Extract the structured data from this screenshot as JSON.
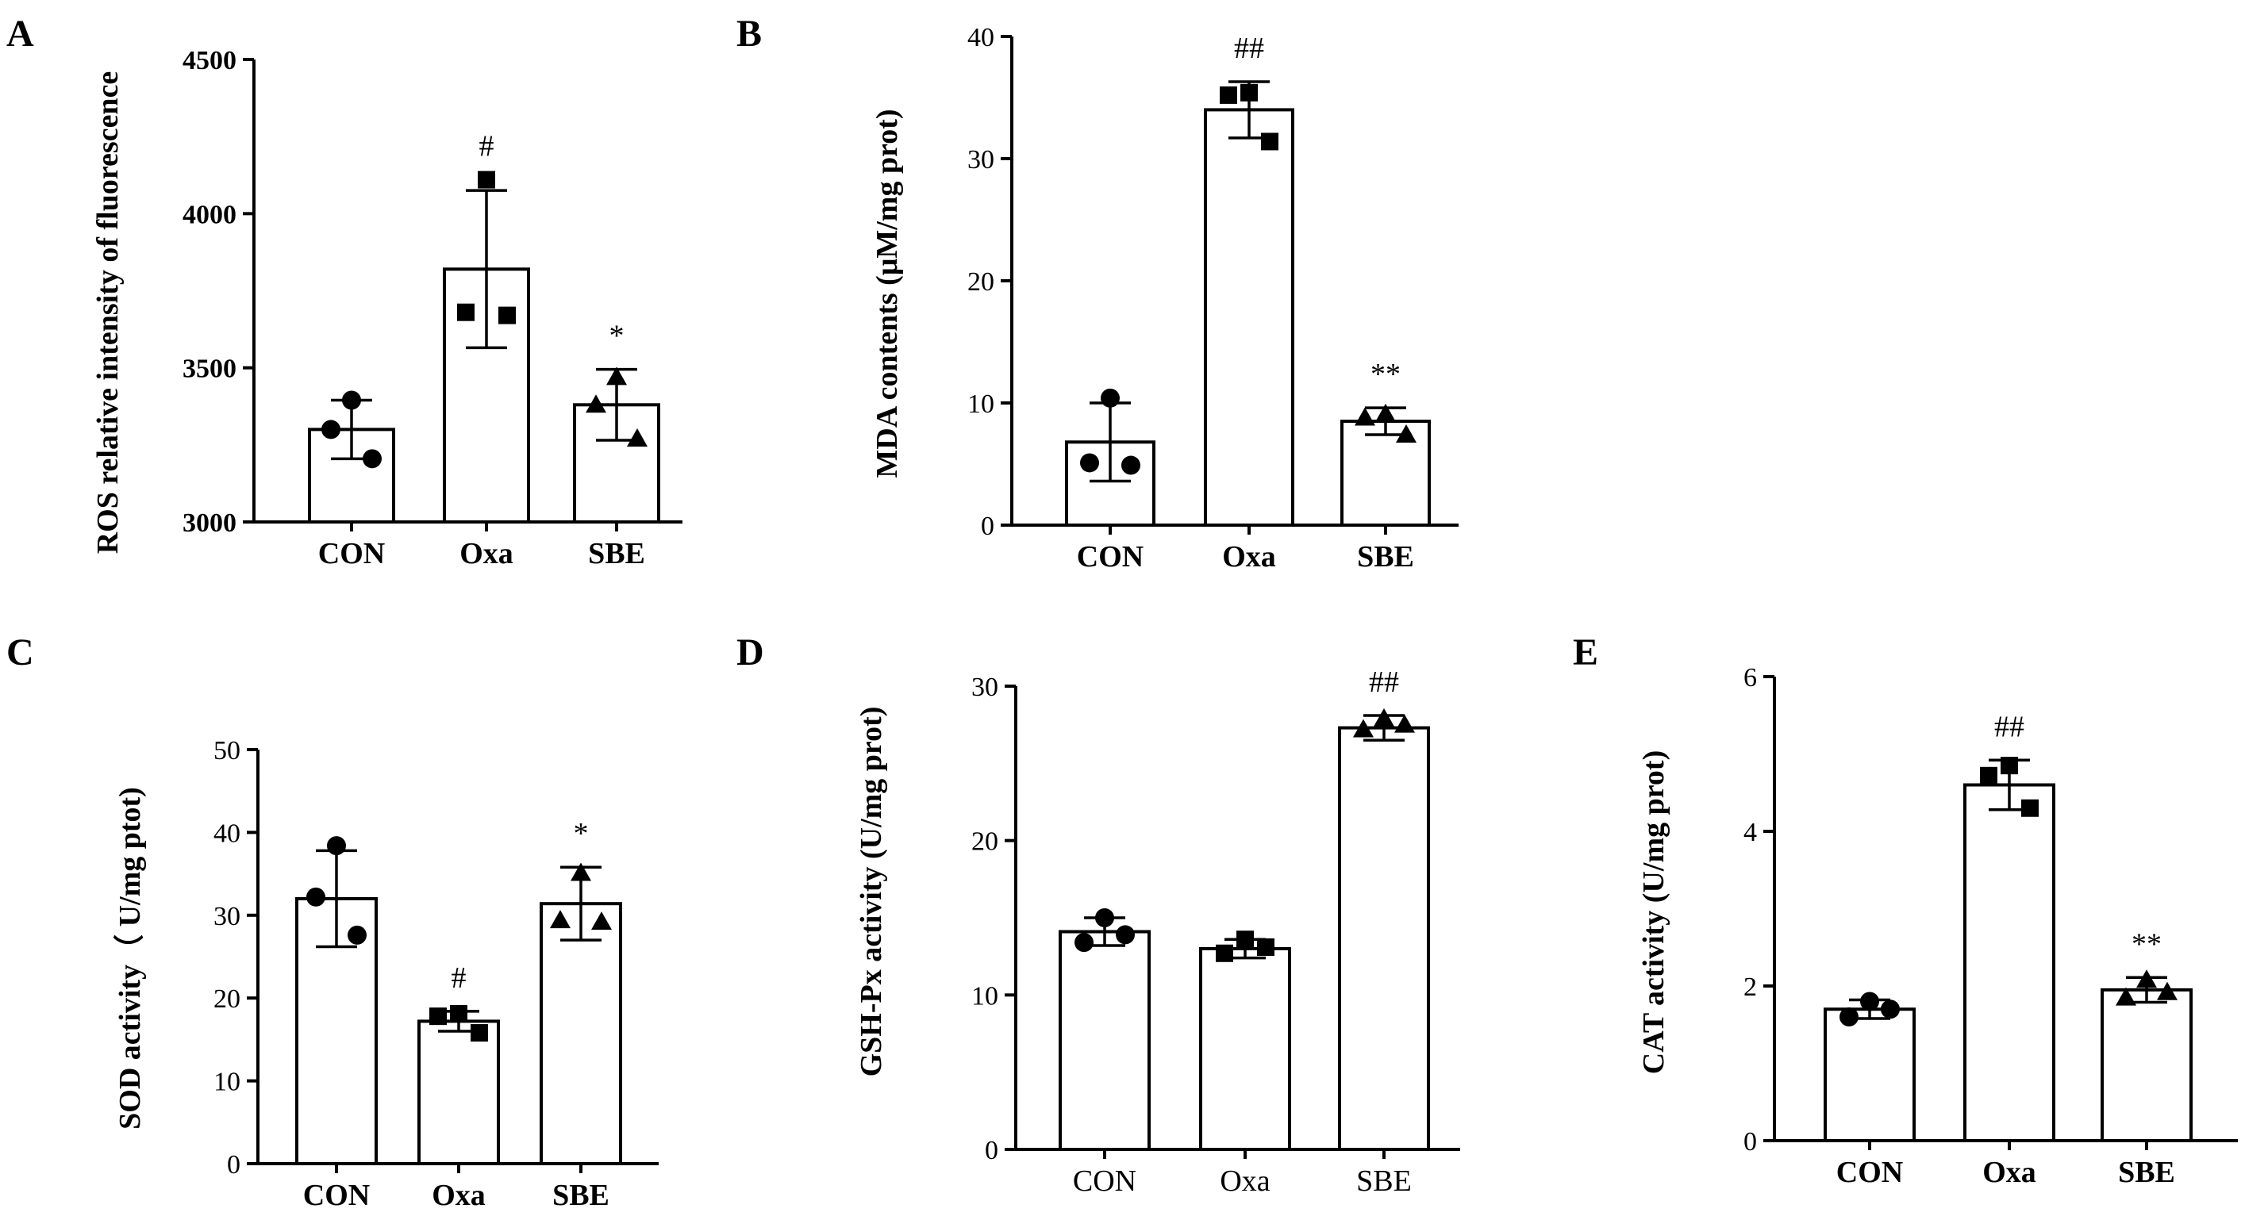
{
  "chart_data": [
    {
      "id": "A",
      "type": "bar",
      "letter": "A",
      "ylabel": "ROS relative intensity of fluorescence",
      "ylim": [
        3000,
        4500
      ],
      "yticks": [
        3000,
        3500,
        4000,
        4500
      ],
      "categories": [
        "CON",
        "Oxa",
        "SBE"
      ],
      "values": [
        3300,
        3820,
        3380
      ],
      "errors": [
        95,
        255,
        115
      ],
      "points": [
        [
          3395,
          3300,
          3205
        ],
        [
          4110,
          3680,
          3670
        ],
        [
          3470,
          3380,
          3270
        ]
      ],
      "markers": [
        "circle",
        "square",
        "triangle"
      ],
      "significance": [
        "",
        "#",
        "*"
      ]
    },
    {
      "id": "B",
      "type": "bar",
      "letter": "B",
      "ylabel": "MDA contents (μM/mg prot)",
      "ylim": [
        0,
        40
      ],
      "yticks": [
        0,
        10,
        20,
        30,
        40
      ],
      "categories": [
        "CON",
        "Oxa",
        "SBE"
      ],
      "values": [
        6.8,
        34,
        8.5
      ],
      "errors": [
        3.2,
        2.3,
        1.1
      ],
      "points": [
        [
          10.4,
          5.1,
          4.9
        ],
        [
          35.4,
          35.2,
          31.4
        ],
        [
          9.1,
          8.8,
          7.4
        ]
      ],
      "markers": [
        "circle",
        "square",
        "triangle"
      ],
      "significance": [
        "",
        "##",
        "**"
      ]
    },
    {
      "id": "C",
      "type": "bar",
      "letter": "C",
      "ylabel": "SOD activity（ U/mg ptot)",
      "ylim": [
        0,
        50
      ],
      "yticks": [
        0,
        10,
        20,
        30,
        40,
        50
      ],
      "categories": [
        "CON",
        "Oxa",
        "SBE"
      ],
      "values": [
        32,
        17.2,
        31.4
      ],
      "errors": [
        5.8,
        1.2,
        4.4
      ],
      "points": [
        [
          38.4,
          32.2,
          27.6
        ],
        [
          18.1,
          17.8,
          15.8
        ],
        [
          35.1,
          29.4,
          29.2
        ]
      ],
      "markers": [
        "circle",
        "square",
        "triangle"
      ],
      "significance": [
        "",
        "#",
        "*"
      ]
    },
    {
      "id": "D",
      "type": "bar",
      "letter": "D",
      "ylabel": "GSH-Px activity (U/mg prot)",
      "ylim": [
        0,
        30
      ],
      "yticks": [
        0,
        10,
        20,
        30
      ],
      "categories": [
        "CON",
        "Oxa",
        "SBE"
      ],
      "values": [
        14.1,
        13,
        27.3
      ],
      "errors": [
        0.9,
        0.6,
        0.8
      ],
      "points": [
        [
          15,
          13.4,
          13.9
        ],
        [
          13.6,
          12.7,
          13.1
        ],
        [
          27.9,
          27.2,
          27.5
        ]
      ],
      "markers": [
        "circle",
        "square",
        "triangle"
      ],
      "significance": [
        "",
        "",
        "##"
      ]
    },
    {
      "id": "E",
      "type": "bar",
      "letter": "E",
      "ylabel": "CAT activity (U/mg prot)",
      "ylim": [
        0,
        6
      ],
      "yticks": [
        0,
        2,
        4,
        6
      ],
      "categories": [
        "CON",
        "Oxa",
        "SBE"
      ],
      "values": [
        1.7,
        4.6,
        1.95
      ],
      "errors": [
        0.12,
        0.32,
        0.16
      ],
      "points": [
        [
          1.8,
          1.6,
          1.7
        ],
        [
          4.85,
          4.72,
          4.3
        ],
        [
          2.08,
          1.85,
          1.92
        ]
      ],
      "markers": [
        "circle",
        "square",
        "triangle"
      ],
      "significance": [
        "",
        "##",
        "**"
      ]
    }
  ]
}
